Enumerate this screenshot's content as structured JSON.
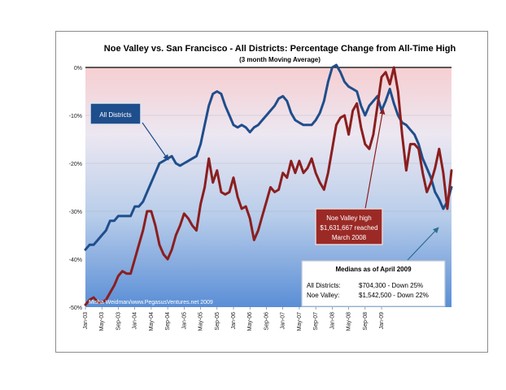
{
  "chart_data": {
    "type": "line",
    "title": "Noe Valley  vs.  San Francisco - All Districts:  Percentage Change from All-Time High",
    "subtitle": "(3 month Moving Average)",
    "xlabel": "",
    "ylabel": "",
    "ylim": [
      -50,
      0
    ],
    "yticks": [
      "0%",
      "-10%",
      "-20%",
      "-30%",
      "-40%",
      "-50%"
    ],
    "xticks": [
      "Jan-03",
      "May-03",
      "Sep-03",
      "Jan-04",
      "May-04",
      "Sep-04",
      "Jan-05",
      "May-05",
      "Sep-05",
      "Jan-06",
      "May-06",
      "Sep-06",
      "Jan-07",
      "May-07",
      "Sep-07",
      "Jan-08",
      "May-08",
      "Sep-08",
      "Jan-09"
    ],
    "x_start": "Jan-03",
    "x_end": "Apr-09",
    "grid": true,
    "colors": {
      "all_districts": "#1f4e8c",
      "noe_valley": "#8b1e1e",
      "zero_line": "#000000"
    },
    "series": [
      {
        "name": "All Districts",
        "values": [
          -38,
          -37,
          -37,
          -36,
          -35,
          -34,
          -32,
          -32,
          -31,
          -31,
          -31,
          -31,
          -29,
          -29,
          -28,
          -26,
          -24,
          -22,
          -20,
          -19.5,
          -19,
          -18.5,
          -20,
          -20.5,
          -20,
          -19.5,
          -19,
          -18.5,
          -16,
          -12,
          -8,
          -5.5,
          -5,
          -5.5,
          -8,
          -10,
          -12,
          -12.5,
          -12,
          -12.5,
          -13.5,
          -12.5,
          -12,
          -11,
          -10,
          -9,
          -8,
          -6.5,
          -6,
          -7,
          -9.5,
          -11,
          -11.5,
          -12,
          -12,
          -12,
          -11,
          -9.5,
          -7,
          -3,
          0,
          0.5,
          -1,
          -3,
          -4,
          -4.5,
          -5,
          -8,
          -10,
          -8,
          -7,
          -6,
          -9,
          -7,
          -4.5,
          -7.5,
          -10,
          -11.5,
          -12,
          -13,
          -14,
          -16,
          -19,
          -21,
          -23,
          -26,
          -27.5,
          -29.5,
          -28,
          -25
        ]
      },
      {
        "name": "Noe Valley",
        "values": [
          -49.5,
          -48.5,
          -48,
          -49,
          -49,
          -48.5,
          -47,
          -45.5,
          -43.5,
          -42.5,
          -43,
          -43,
          -40,
          -37,
          -34,
          -30,
          -30,
          -33,
          -37,
          -39,
          -40,
          -38,
          -35,
          -33,
          -30.5,
          -31.5,
          -33,
          -34,
          -28.5,
          -25,
          -19,
          -24,
          -21.5,
          -26,
          -26.5,
          -26,
          -23,
          -27,
          -29.5,
          -29,
          -31.5,
          -36,
          -34,
          -31,
          -28,
          -25,
          -26,
          -25.5,
          -22,
          -23,
          -19.5,
          -22,
          -19.5,
          -22,
          -21,
          -19,
          -22,
          -24,
          -25.5,
          -22,
          -17,
          -12,
          -10.5,
          -10,
          -14,
          -9,
          -7.5,
          -12.5,
          -16,
          -17,
          -14,
          -8,
          -2,
          -1,
          -3.5,
          0,
          -5,
          -14,
          -21.5,
          -16,
          -16,
          -17,
          -22,
          -26,
          -24,
          -21,
          -17,
          -22,
          -29.5,
          -21.5
        ]
      }
    ],
    "annotations": [
      {
        "text": "All Districts"
      },
      {
        "text": "Noe Valley high $1,631,667 reached March 2008",
        "lines": [
          "Noe Valley high",
          "$1,631,667 reached",
          "March 2008"
        ]
      },
      {
        "text": "Medians as of April 2009",
        "rows": [
          {
            "label": "All Districts:",
            "value": "$704,300 - Down 25%"
          },
          {
            "label": "Noe Valley:",
            "value": "$1,542,500 - Down 22%"
          }
        ]
      },
      {
        "text": "Misha Weidman/www.PegasusVentures.net 2009"
      }
    ]
  }
}
